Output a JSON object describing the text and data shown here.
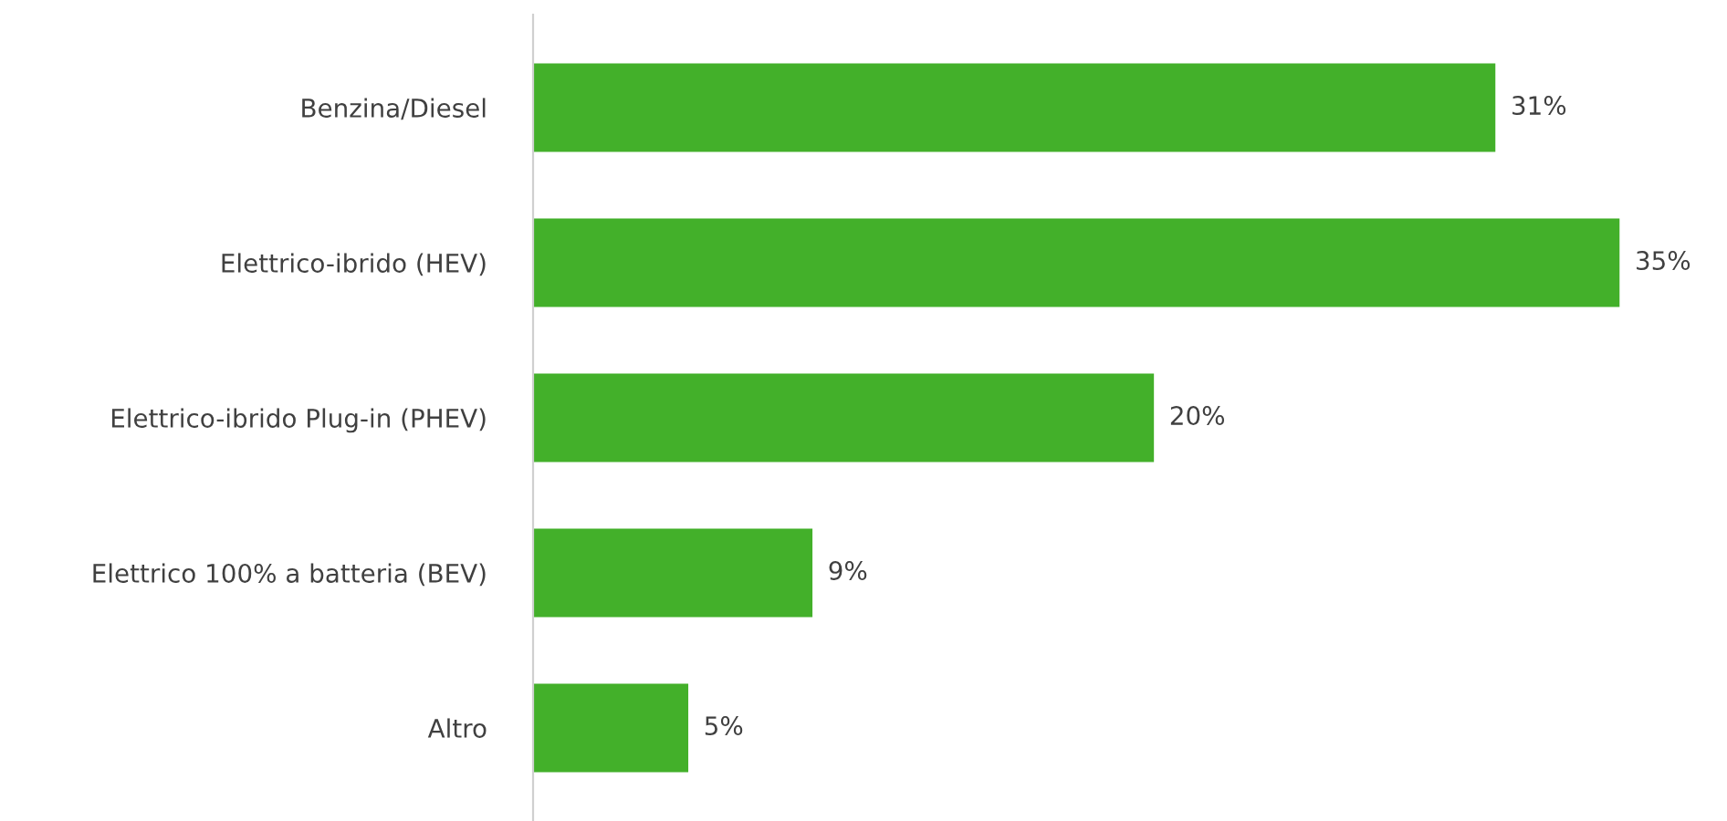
{
  "chart_data": {
    "type": "bar",
    "orientation": "horizontal",
    "categories": [
      "Benzina/Diesel",
      "Elettrico-ibrido (HEV)",
      "Elettrico-ibrido Plug-in (PHEV)",
      "Elettrico 100% a batteria (BEV)",
      "Altro"
    ],
    "values": [
      31,
      35,
      20,
      9,
      5
    ],
    "value_labels": [
      "31%",
      "35%",
      "20%",
      "9%",
      "5%"
    ],
    "color": "#43b02a",
    "grid": false,
    "legend": false
  }
}
